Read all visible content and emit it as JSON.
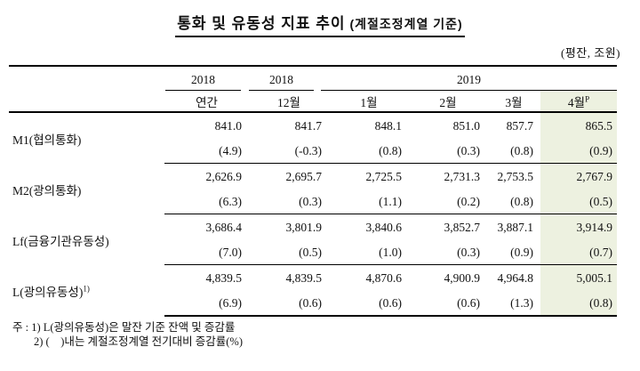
{
  "title": {
    "main": "통화 및 유동성 지표 추이",
    "sub": " (계절조정계열 기준)"
  },
  "unit_note": "(평잔, 조원)",
  "table": {
    "header": {
      "group1": "2018",
      "group2": "2018",
      "group3": "2019",
      "sub1": "연간",
      "sub2": "12월",
      "months_2019": [
        "1월",
        "2월",
        "3월"
      ],
      "month_p": "4월",
      "p_sup": "P"
    },
    "highlight_color": "#edf1e0",
    "rows": [
      {
        "label": "M1(협의통화)",
        "sup": "",
        "values": [
          "841.0",
          "841.7",
          "848.1",
          "851.0",
          "857.7",
          "865.5"
        ],
        "pcts": [
          "(4.9)",
          "(-0.3)",
          "(0.8)",
          "(0.3)",
          "(0.8)",
          "(0.9)"
        ]
      },
      {
        "label": "M2(광의통화)",
        "sup": "",
        "values": [
          "2,626.9",
          "2,695.7",
          "2,725.5",
          "2,731.3",
          "2,753.5",
          "2,767.9"
        ],
        "pcts": [
          "(6.3)",
          "(0.3)",
          "(1.1)",
          "(0.2)",
          "(0.8)",
          "(0.5)"
        ]
      },
      {
        "label": "Lf(금융기관유동성)",
        "sup": "",
        "values": [
          "3,686.4",
          "3,801.9",
          "3,840.6",
          "3,852.7",
          "3,887.1",
          "3,914.9"
        ],
        "pcts": [
          "(7.0)",
          "(0.5)",
          "(1.0)",
          "(0.3)",
          "(0.9)",
          "(0.7)"
        ]
      },
      {
        "label": "L(광의유동성)",
        "sup": "1)",
        "values": [
          "4,839.5",
          "4,839.5",
          "4,870.6",
          "4,900.9",
          "4,964.8",
          "5,005.1"
        ],
        "pcts": [
          "(6.9)",
          "(0.6)",
          "(0.6)",
          "(0.6)",
          "(1.3)",
          "(0.8)"
        ]
      }
    ]
  },
  "footnotes": {
    "line1": "주 : 1) L(광의유동성)은 말잔 기준 잔액 및 증감률",
    "line2": "2) (    )내는 계절조정계열 전기대비 증감률(%)"
  }
}
